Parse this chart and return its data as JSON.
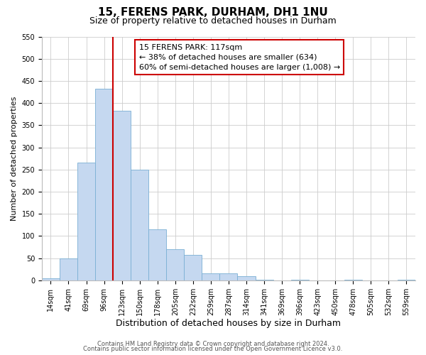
{
  "title": "15, FERENS PARK, DURHAM, DH1 1NU",
  "subtitle": "Size of property relative to detached houses in Durham",
  "xlabel": "Distribution of detached houses by size in Durham",
  "ylabel": "Number of detached properties",
  "bar_labels": [
    "14sqm",
    "41sqm",
    "69sqm",
    "96sqm",
    "123sqm",
    "150sqm",
    "178sqm",
    "205sqm",
    "232sqm",
    "259sqm",
    "287sqm",
    "314sqm",
    "341sqm",
    "369sqm",
    "396sqm",
    "423sqm",
    "450sqm",
    "478sqm",
    "505sqm",
    "532sqm",
    "559sqm"
  ],
  "bar_values": [
    5,
    50,
    265,
    432,
    382,
    250,
    115,
    70,
    58,
    15,
    15,
    10,
    2,
    0,
    2,
    0,
    0,
    2,
    0,
    0,
    2
  ],
  "bar_color": "#c5d8f0",
  "bar_edge_color": "#7aafd4",
  "vline_color": "#cc0000",
  "annotation_line1": "15 FERENS PARK: 117sqm",
  "annotation_line2": "← 38% of detached houses are smaller (634)",
  "annotation_line3": "60% of semi-detached houses are larger (1,008) →",
  "annotation_box_facecolor": "#ffffff",
  "annotation_box_edgecolor": "#cc0000",
  "ylim": [
    0,
    550
  ],
  "yticks": [
    0,
    50,
    100,
    150,
    200,
    250,
    300,
    350,
    400,
    450,
    500,
    550
  ],
  "footer1": "Contains HM Land Registry data © Crown copyright and database right 2024.",
  "footer2": "Contains public sector information licensed under the Open Government Licence v3.0.",
  "bg_color": "#ffffff",
  "grid_color": "#cccccc",
  "title_fontsize": 11,
  "subtitle_fontsize": 9,
  "xlabel_fontsize": 9,
  "ylabel_fontsize": 8,
  "tick_fontsize": 7,
  "annot_fontsize": 8,
  "footer_fontsize": 6
}
